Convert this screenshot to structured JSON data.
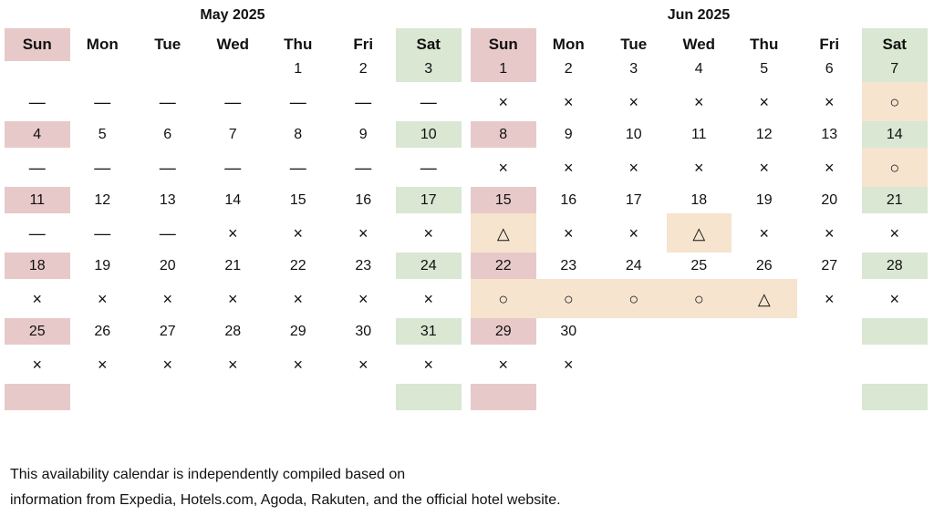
{
  "calendar": {
    "months": [
      {
        "title": "May 2025",
        "weekdays": [
          "Sun",
          "Mon",
          "Tue",
          "Wed",
          "Thu",
          "Fri",
          "Sat"
        ],
        "weeks": [
          {
            "dates": [
              "",
              "",
              "",
              "",
              "1",
              "2",
              "3"
            ],
            "marks": [
              "—",
              "—",
              "—",
              "—",
              "—",
              "—",
              "—"
            ]
          },
          {
            "dates": [
              "4",
              "5",
              "6",
              "7",
              "8",
              "9",
              "10"
            ],
            "marks": [
              "—",
              "—",
              "—",
              "—",
              "—",
              "—",
              "—"
            ]
          },
          {
            "dates": [
              "11",
              "12",
              "13",
              "14",
              "15",
              "16",
              "17"
            ],
            "marks": [
              "—",
              "—",
              "—",
              "×",
              "×",
              "×",
              "×"
            ]
          },
          {
            "dates": [
              "18",
              "19",
              "20",
              "21",
              "22",
              "23",
              "24"
            ],
            "marks": [
              "×",
              "×",
              "×",
              "×",
              "×",
              "×",
              "×"
            ]
          },
          {
            "dates": [
              "25",
              "26",
              "27",
              "28",
              "29",
              "30",
              "31"
            ],
            "marks": [
              "×",
              "×",
              "×",
              "×",
              "×",
              "×",
              "×"
            ]
          }
        ]
      },
      {
        "title": "Jun 2025",
        "weekdays": [
          "Sun",
          "Mon",
          "Tue",
          "Wed",
          "Thu",
          "Fri",
          "Sat"
        ],
        "weeks": [
          {
            "dates": [
              "1",
              "2",
              "3",
              "4",
              "5",
              "6",
              "7"
            ],
            "marks": [
              "×",
              "×",
              "×",
              "×",
              "×",
              "×",
              "○"
            ]
          },
          {
            "dates": [
              "8",
              "9",
              "10",
              "11",
              "12",
              "13",
              "14"
            ],
            "marks": [
              "×",
              "×",
              "×",
              "×",
              "×",
              "×",
              "○"
            ]
          },
          {
            "dates": [
              "15",
              "16",
              "17",
              "18",
              "19",
              "20",
              "21"
            ],
            "marks": [
              "△",
              "×",
              "×",
              "△",
              "×",
              "×",
              "×"
            ]
          },
          {
            "dates": [
              "22",
              "23",
              "24",
              "25",
              "26",
              "27",
              "28"
            ],
            "marks": [
              "○",
              "○",
              "○",
              "○",
              "△",
              "×",
              "×"
            ]
          },
          {
            "dates": [
              "29",
              "30",
              "",
              "",
              "",
              "",
              ""
            ],
            "marks": [
              "×",
              "×",
              "",
              "",
              "",
              "",
              ""
            ]
          }
        ]
      }
    ]
  },
  "colors": {
    "sunday": "#e8c9c9",
    "saturday": "#d9e7d3",
    "available": "#f6e4cf"
  },
  "footer": {
    "line1": "This availability calendar is independently compiled based on",
    "line2": "information from Expedia, Hotels.com, Agoda, Rakuten, and the official hotel website."
  }
}
